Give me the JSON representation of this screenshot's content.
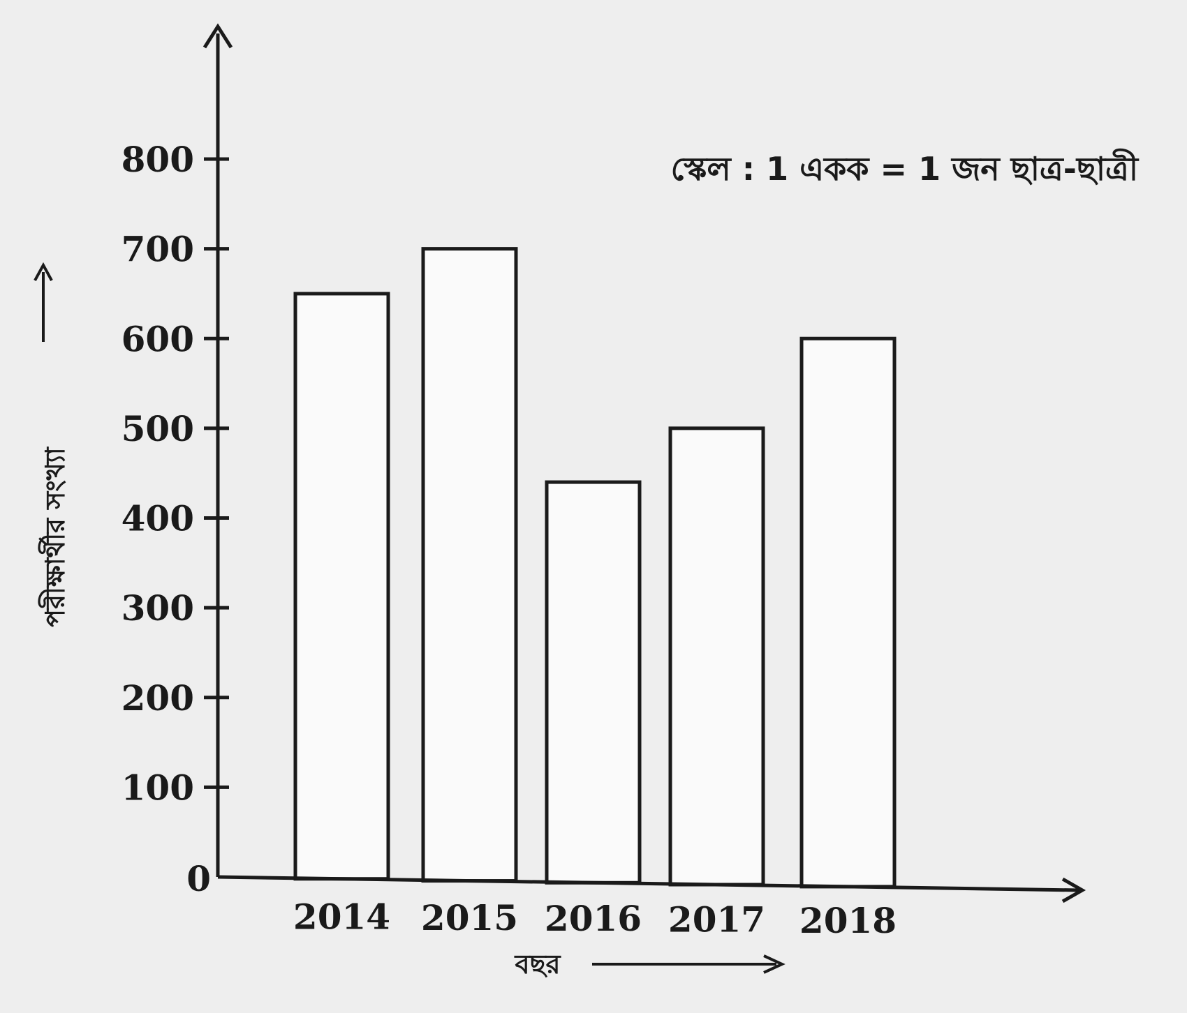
{
  "chart_data": {
    "type": "bar",
    "categories": [
      "2014",
      "2015",
      "2016",
      "2017",
      "2018"
    ],
    "values": [
      650,
      700,
      440,
      500,
      600
    ],
    "yticks": [
      "0",
      "100",
      "200",
      "300",
      "400",
      "500",
      "600",
      "700",
      "800"
    ],
    "ylim": [
      0,
      800
    ],
    "xlabel": "বছর",
    "ylabel": "পরীক্ষার্থীর সংখ্যা",
    "annotation": "স্কেল : 1 একক = 1 জন ছাত্র-ছাত্রী",
    "grid": false,
    "legend": "none",
    "colors": {
      "background": "#eeeeee",
      "bar_fill": "#fafafa",
      "ink": "#1a1a1a"
    }
  }
}
